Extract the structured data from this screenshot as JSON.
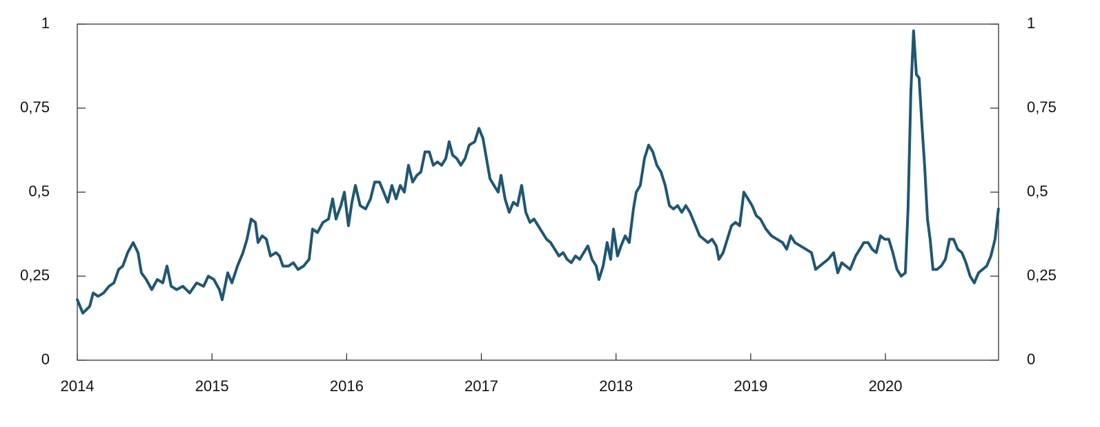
{
  "chart_data": {
    "type": "line",
    "x": [
      2014.0,
      2014.041,
      2014.092,
      2014.118,
      2014.154,
      2014.195,
      2014.236,
      2014.272,
      2014.307,
      2014.338,
      2014.374,
      2014.415,
      2014.451,
      2014.476,
      2014.512,
      2014.553,
      2014.594,
      2014.635,
      2014.666,
      2014.697,
      2014.738,
      2014.784,
      2014.835,
      2014.886,
      2014.938,
      2014.973,
      2015.014,
      2015.055,
      2015.076,
      2015.117,
      2015.148,
      2015.189,
      2015.23,
      2015.26,
      2015.291,
      2015.322,
      2015.342,
      2015.373,
      2015.404,
      2015.434,
      2015.475,
      2015.501,
      2015.527,
      2015.568,
      2015.604,
      2015.639,
      2015.68,
      2015.721,
      2015.747,
      2015.783,
      2015.824,
      2015.865,
      2015.896,
      2015.921,
      2015.957,
      2015.983,
      2016.013,
      2016.039,
      2016.065,
      2016.1,
      2016.141,
      2016.177,
      2016.208,
      2016.244,
      2016.275,
      2016.305,
      2016.336,
      2016.367,
      2016.398,
      2016.428,
      2016.459,
      2016.49,
      2016.521,
      2016.551,
      2016.582,
      2016.613,
      2016.643,
      2016.674,
      2016.705,
      2016.736,
      2016.761,
      2016.787,
      2016.818,
      2016.848,
      2016.879,
      2016.91,
      2016.951,
      2016.982,
      2017.012,
      2017.038,
      2017.064,
      2017.094,
      2017.125,
      2017.146,
      2017.176,
      2017.207,
      2017.238,
      2017.268,
      2017.299,
      2017.33,
      2017.361,
      2017.391,
      2017.422,
      2017.453,
      2017.484,
      2017.514,
      2017.545,
      2017.576,
      2017.607,
      2017.637,
      2017.668,
      2017.699,
      2017.73,
      2017.76,
      2017.791,
      2017.822,
      2017.853,
      2017.873,
      2017.904,
      2017.934,
      2017.96,
      2017.981,
      2018.011,
      2018.037,
      2018.068,
      2018.098,
      2018.129,
      2018.15,
      2018.18,
      2018.211,
      2018.242,
      2018.273,
      2018.303,
      2018.334,
      2018.365,
      2018.396,
      2018.426,
      2018.457,
      2018.488,
      2018.518,
      2018.549,
      2018.59,
      2018.621,
      2018.652,
      2018.682,
      2018.713,
      2018.744,
      2018.764,
      2018.795,
      2018.826,
      2018.857,
      2018.887,
      2018.918,
      2018.949,
      2018.98,
      2019.01,
      2019.041,
      2019.072,
      2019.113,
      2019.154,
      2019.195,
      2019.236,
      2019.267,
      2019.297,
      2019.328,
      2019.369,
      2019.41,
      2019.451,
      2019.482,
      2019.512,
      2019.543,
      2019.574,
      2019.615,
      2019.646,
      2019.676,
      2019.707,
      2019.738,
      2019.779,
      2019.81,
      2019.84,
      2019.871,
      2019.902,
      2019.932,
      2019.963,
      2019.994,
      2020.025,
      2020.055,
      2020.086,
      2020.117,
      2020.148,
      2020.168,
      2020.189,
      2020.209,
      2020.23,
      2020.25,
      2020.271,
      2020.291,
      2020.312,
      2020.332,
      2020.353,
      2020.383,
      2020.414,
      2020.445,
      2020.476,
      2020.506,
      2020.537,
      2020.568,
      2020.598,
      2020.629,
      2020.66,
      2020.691,
      2020.721,
      2020.752,
      2020.783,
      2020.814,
      2020.839
    ],
    "series": [
      {
        "color": "#1f5673",
        "values": [
          0.18,
          0.14,
          0.16,
          0.2,
          0.19,
          0.2,
          0.22,
          0.23,
          0.27,
          0.28,
          0.32,
          0.35,
          0.32,
          0.26,
          0.24,
          0.21,
          0.24,
          0.23,
          0.28,
          0.22,
          0.21,
          0.22,
          0.2,
          0.23,
          0.22,
          0.25,
          0.24,
          0.21,
          0.18,
          0.26,
          0.23,
          0.28,
          0.32,
          0.36,
          0.42,
          0.41,
          0.35,
          0.37,
          0.36,
          0.31,
          0.32,
          0.31,
          0.28,
          0.28,
          0.29,
          0.27,
          0.28,
          0.3,
          0.39,
          0.38,
          0.41,
          0.42,
          0.48,
          0.42,
          0.46,
          0.5,
          0.4,
          0.47,
          0.52,
          0.46,
          0.45,
          0.48,
          0.53,
          0.53,
          0.5,
          0.47,
          0.52,
          0.48,
          0.52,
          0.5,
          0.58,
          0.53,
          0.55,
          0.56,
          0.62,
          0.62,
          0.58,
          0.59,
          0.58,
          0.6,
          0.65,
          0.61,
          0.6,
          0.58,
          0.6,
          0.64,
          0.65,
          0.69,
          0.66,
          0.6,
          0.54,
          0.52,
          0.5,
          0.55,
          0.48,
          0.44,
          0.47,
          0.46,
          0.52,
          0.44,
          0.41,
          0.42,
          0.4,
          0.38,
          0.36,
          0.35,
          0.33,
          0.31,
          0.32,
          0.3,
          0.29,
          0.31,
          0.3,
          0.32,
          0.34,
          0.3,
          0.28,
          0.24,
          0.28,
          0.35,
          0.3,
          0.39,
          0.31,
          0.34,
          0.37,
          0.35,
          0.45,
          0.5,
          0.52,
          0.6,
          0.64,
          0.62,
          0.58,
          0.56,
          0.52,
          0.46,
          0.45,
          0.46,
          0.44,
          0.46,
          0.44,
          0.4,
          0.37,
          0.36,
          0.35,
          0.36,
          0.34,
          0.3,
          0.32,
          0.36,
          0.4,
          0.41,
          0.4,
          0.5,
          0.48,
          0.46,
          0.43,
          0.42,
          0.39,
          0.37,
          0.36,
          0.35,
          0.33,
          0.37,
          0.35,
          0.34,
          0.33,
          0.32,
          0.27,
          0.28,
          0.29,
          0.3,
          0.32,
          0.26,
          0.29,
          0.28,
          0.27,
          0.31,
          0.33,
          0.35,
          0.35,
          0.33,
          0.32,
          0.37,
          0.36,
          0.36,
          0.32,
          0.27,
          0.25,
          0.26,
          0.45,
          0.8,
          0.98,
          0.85,
          0.84,
          0.7,
          0.58,
          0.42,
          0.36,
          0.27,
          0.27,
          0.28,
          0.3,
          0.36,
          0.36,
          0.33,
          0.32,
          0.29,
          0.25,
          0.23,
          0.26,
          0.27,
          0.28,
          0.31,
          0.36,
          0.45
        ]
      }
    ],
    "xlim": [
      2014,
      2020.84
    ],
    "xticks": [
      2014,
      2015,
      2016,
      2017,
      2018,
      2019,
      2020
    ],
    "ylim": [
      0,
      1
    ],
    "yticks": [
      0,
      {
        "value": 0.25,
        "label": "0,25"
      },
      {
        "value": 0.5,
        "label": "0,5"
      },
      {
        "value": 0.75,
        "label": "0,75"
      },
      1
    ],
    "y2lim": [
      0,
      1
    ],
    "y2ticks": [
      0,
      {
        "value": 0.25,
        "label": "0,25"
      },
      {
        "value": 0.5,
        "label": "0,5"
      },
      {
        "value": 0.75,
        "label": "0,75"
      },
      1
    ]
  }
}
